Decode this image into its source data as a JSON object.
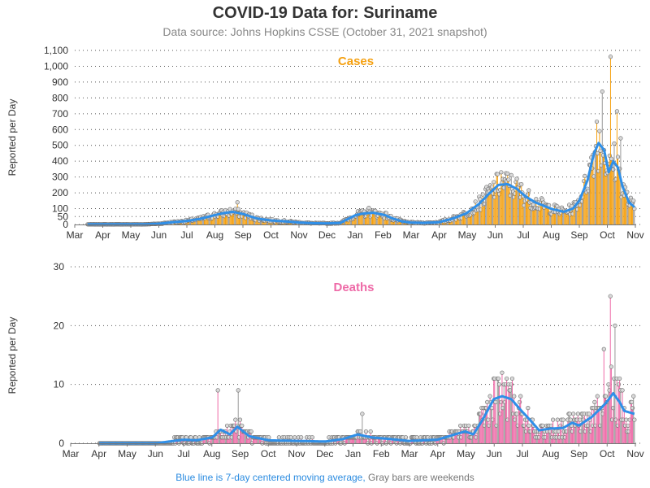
{
  "title": "COVID-19 Data for: Suriname",
  "subtitle": "Data source: Johns Hopkins CSSE (October 31, 2021 snapshot)",
  "footnote": {
    "avg_note": "Blue line is 7-day centered moving average,",
    "weekend_note": "Gray bars are weekends"
  },
  "colors": {
    "cases": "#f5a00f",
    "deaths": "#ee6aa7",
    "average": "#2f8fe8",
    "weekend": "#999999",
    "marker_fill": "#d9d9d9"
  },
  "chart_data": [
    {
      "type": "bar",
      "panel": "cases",
      "label": "Cases",
      "ylabel": "Reported per Day",
      "ylim": [
        0,
        1100
      ],
      "yticks": [
        0,
        50,
        100,
        200,
        300,
        400,
        500,
        600,
        700,
        800,
        900,
        1000,
        1100
      ],
      "ytick_labels": [
        "0",
        "50",
        "100",
        "200",
        "300",
        "400",
        "500",
        "600",
        "700",
        "800",
        "900",
        "1,000",
        "1,100"
      ],
      "xticks": [
        "Mar",
        "Apr",
        "May",
        "Jun",
        "Jul",
        "Aug",
        "Sep",
        "Oct",
        "Nov",
        "Dec",
        "Jan",
        "Feb",
        "Mar",
        "Apr",
        "May",
        "Jun",
        "Jul",
        "Aug",
        "Sep",
        "Oct",
        "Nov"
      ],
      "x_range": [
        "2020-03-01",
        "2021-11-01"
      ],
      "grid": true,
      "series": [
        {
          "name": "Reported per Day",
          "style": "bars-with-markers"
        },
        {
          "name": "7-day centered moving average",
          "style": "line"
        }
      ],
      "weekly_average": [
        [
          "2020-03-15",
          1
        ],
        [
          "2020-04-15",
          1
        ],
        [
          "2020-05-15",
          1
        ],
        [
          "2020-06-01",
          5
        ],
        [
          "2020-06-15",
          14
        ],
        [
          "2020-07-01",
          22
        ],
        [
          "2020-07-15",
          35
        ],
        [
          "2020-08-01",
          60
        ],
        [
          "2020-08-10",
          72
        ],
        [
          "2020-08-20",
          80
        ],
        [
          "2020-09-01",
          65
        ],
        [
          "2020-09-15",
          38
        ],
        [
          "2020-10-01",
          25
        ],
        [
          "2020-10-15",
          20
        ],
        [
          "2020-11-01",
          12
        ],
        [
          "2020-11-15",
          8
        ],
        [
          "2020-12-01",
          7
        ],
        [
          "2020-12-15",
          10
        ],
        [
          "2020-12-25",
          40
        ],
        [
          "2021-01-01",
          60
        ],
        [
          "2021-01-10",
          70
        ],
        [
          "2021-01-20",
          74
        ],
        [
          "2021-02-01",
          60
        ],
        [
          "2021-02-10",
          38
        ],
        [
          "2021-02-20",
          20
        ],
        [
          "2021-03-01",
          12
        ],
        [
          "2021-03-15",
          10
        ],
        [
          "2021-04-01",
          14
        ],
        [
          "2021-04-15",
          35
        ],
        [
          "2021-05-01",
          70
        ],
        [
          "2021-05-15",
          130
        ],
        [
          "2021-05-25",
          190
        ],
        [
          "2021-06-05",
          250
        ],
        [
          "2021-06-15",
          255
        ],
        [
          "2021-06-25",
          225
        ],
        [
          "2021-07-05",
          175
        ],
        [
          "2021-07-15",
          140
        ],
        [
          "2021-08-01",
          100
        ],
        [
          "2021-08-15",
          80
        ],
        [
          "2021-08-25",
          100
        ],
        [
          "2021-09-01",
          150
        ],
        [
          "2021-09-10",
          280
        ],
        [
          "2021-09-17",
          450
        ],
        [
          "2021-09-22",
          515
        ],
        [
          "2021-09-28",
          470
        ],
        [
          "2021-10-03",
          330
        ],
        [
          "2021-10-08",
          400
        ],
        [
          "2021-10-13",
          360
        ],
        [
          "2021-10-18",
          240
        ],
        [
          "2021-10-25",
          140
        ],
        [
          "2021-10-31",
          110
        ]
      ],
      "notable_peaks": [
        [
          "2020-08-25",
          140
        ],
        [
          "2021-01-15",
          105
        ],
        [
          "2021-06-08",
          330
        ],
        [
          "2021-09-20",
          650
        ],
        [
          "2021-09-26",
          840
        ],
        [
          "2021-10-05",
          1060
        ],
        [
          "2021-10-12",
          715
        ],
        [
          "2021-10-16",
          545
        ]
      ]
    },
    {
      "type": "bar",
      "panel": "deaths",
      "label": "Deaths",
      "ylabel": "Reported per Day",
      "ylim": [
        0,
        30
      ],
      "yticks": [
        0,
        10,
        20,
        30
      ],
      "ytick_labels": [
        "0",
        "10",
        "20",
        "30"
      ],
      "xticks": [
        "Mar",
        "Apr",
        "May",
        "Jun",
        "Jul",
        "Aug",
        "Sep",
        "Oct",
        "Nov",
        "Dec",
        "Jan",
        "Feb",
        "Mar",
        "Apr",
        "May",
        "Jun",
        "Jul",
        "Aug",
        "Sep",
        "Oct",
        "Nov"
      ],
      "x_range": [
        "2020-03-01",
        "2021-11-01"
      ],
      "grid": true,
      "series": [
        {
          "name": "Reported per Day",
          "style": "bars-with-markers"
        },
        {
          "name": "7-day centered moving average",
          "style": "line"
        }
      ],
      "weekly_average": [
        [
          "2020-04-01",
          0
        ],
        [
          "2020-06-01",
          0
        ],
        [
          "2020-06-15",
          0.3
        ],
        [
          "2020-07-01",
          0.6
        ],
        [
          "2020-07-15",
          0.5
        ],
        [
          "2020-08-01",
          1.0
        ],
        [
          "2020-08-10",
          2.3
        ],
        [
          "2020-08-20",
          1.5
        ],
        [
          "2020-08-28",
          2.8
        ],
        [
          "2020-09-10",
          1.2
        ],
        [
          "2020-10-01",
          0.5
        ],
        [
          "2020-11-01",
          0.4
        ],
        [
          "2020-12-01",
          0.3
        ],
        [
          "2020-12-20",
          0.7
        ],
        [
          "2021-01-05",
          1.5
        ],
        [
          "2021-01-20",
          1.0
        ],
        [
          "2021-02-10",
          0.7
        ],
        [
          "2021-03-01",
          0.4
        ],
        [
          "2021-04-01",
          0.6
        ],
        [
          "2021-04-20",
          1.5
        ],
        [
          "2021-05-01",
          2.0
        ],
        [
          "2021-05-10",
          1.5
        ],
        [
          "2021-05-20",
          4.0
        ],
        [
          "2021-06-01",
          7.5
        ],
        [
          "2021-06-10",
          8.0
        ],
        [
          "2021-06-20",
          7.5
        ],
        [
          "2021-07-01",
          5.5
        ],
        [
          "2021-07-10",
          4.0
        ],
        [
          "2021-07-20",
          2.2
        ],
        [
          "2021-08-01",
          2.5
        ],
        [
          "2021-08-15",
          2.6
        ],
        [
          "2021-08-25",
          3.5
        ],
        [
          "2021-09-01",
          3.0
        ],
        [
          "2021-09-15",
          4.5
        ],
        [
          "2021-09-25",
          6.0
        ],
        [
          "2021-10-01",
          7.0
        ],
        [
          "2021-10-08",
          8.5
        ],
        [
          "2021-10-15",
          7.0
        ],
        [
          "2021-10-20",
          5.5
        ],
        [
          "2021-10-31",
          5.0
        ]
      ],
      "notable_peaks": [
        [
          "2020-08-07",
          9
        ],
        [
          "2020-08-29",
          9
        ],
        [
          "2021-01-10",
          5
        ],
        [
          "2021-06-05",
          11
        ],
        [
          "2021-06-15",
          11
        ],
        [
          "2021-09-28",
          16
        ],
        [
          "2021-10-05",
          25
        ],
        [
          "2021-10-10",
          20
        ],
        [
          "2021-10-15",
          11
        ]
      ]
    }
  ]
}
